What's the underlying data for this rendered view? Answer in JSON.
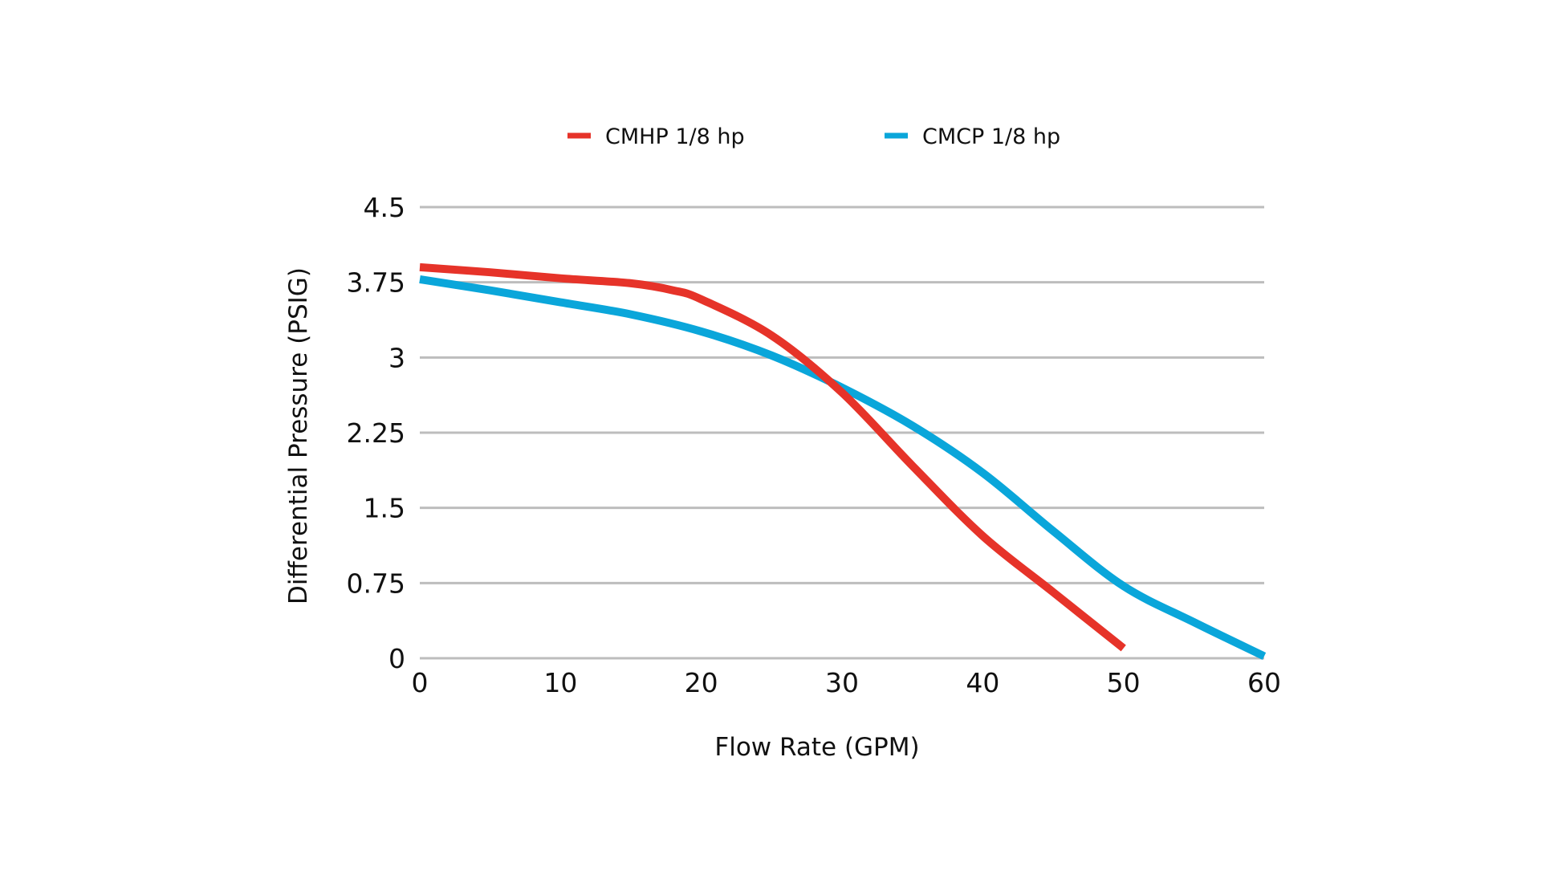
{
  "chart_data": {
    "type": "line",
    "title": "",
    "xlabel": "Flow Rate (GPM)",
    "ylabel": "Differential Pressure (PSIG)",
    "xlim": [
      0,
      60
    ],
    "ylim": [
      0,
      4.5
    ],
    "x_ticks": [
      "0",
      "10",
      "20",
      "30",
      "40",
      "50",
      "60"
    ],
    "y_ticks": [
      "0",
      "0.75",
      "1.5",
      "2.25",
      "3",
      "3.75",
      "4.5"
    ],
    "grid": true,
    "legend_position": "top-center",
    "series": [
      {
        "name": "CMHP 1/8 hp",
        "color": "#e63329",
        "x": [
          0,
          5,
          10,
          15,
          18,
          20,
          25,
          30,
          35,
          40,
          45,
          50
        ],
        "y": [
          3.9,
          3.85,
          3.79,
          3.74,
          3.67,
          3.58,
          3.22,
          2.65,
          1.92,
          1.22,
          0.66,
          0.1
        ]
      },
      {
        "name": "CMCP 1/8 hp",
        "color": "#0aa6da",
        "x": [
          0,
          5,
          10,
          15,
          20,
          25,
          30,
          35,
          40,
          45,
          50,
          55,
          60
        ],
        "y": [
          3.78,
          3.67,
          3.55,
          3.43,
          3.26,
          3.02,
          2.7,
          2.32,
          1.85,
          1.27,
          0.72,
          0.36,
          0.02
        ]
      }
    ]
  }
}
